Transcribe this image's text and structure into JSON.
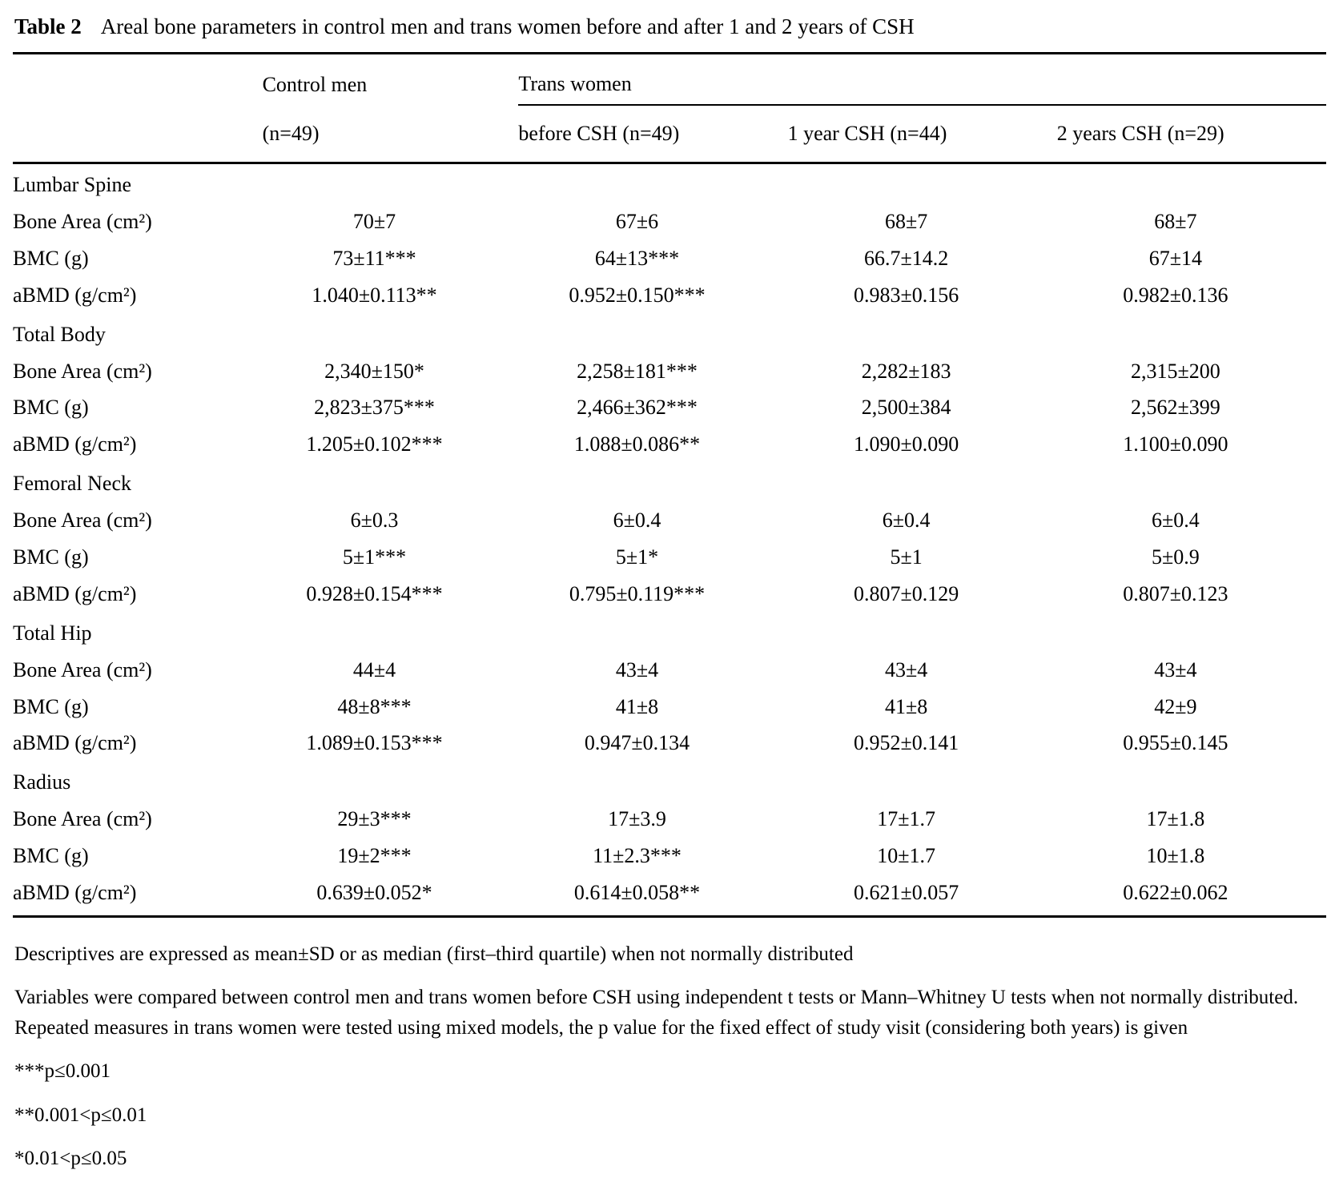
{
  "caption": {
    "label": "Table 2",
    "text": "Areal bone parameters in control men and trans women before and after 1 and 2 years of CSH"
  },
  "colors": {
    "text": "#000000",
    "background": "#ffffff",
    "rule": "#000000"
  },
  "table": {
    "group_headers": {
      "control": "Control men",
      "trans": "Trans women"
    },
    "col_headers": [
      "(n=49)",
      "before CSH (n=49)",
      "1 year CSH (n=44)",
      "2 years CSH (n=29)"
    ],
    "rows": [
      {
        "type": "section",
        "label": "Lumbar Spine"
      },
      {
        "type": "data",
        "label": "Bone Area (cm²)",
        "values": [
          "70±7",
          "67±6",
          "68±7",
          "68±7"
        ]
      },
      {
        "type": "data",
        "label": "BMC (g)",
        "values": [
          "73±11***",
          "64±13***",
          "66.7±14.2",
          "67±14"
        ]
      },
      {
        "type": "data",
        "label": "aBMD (g/cm²)",
        "values": [
          "1.040±0.113**",
          "0.952±0.150***",
          "0.983±0.156",
          "0.982±0.136"
        ]
      },
      {
        "type": "section",
        "label": "Total Body"
      },
      {
        "type": "data",
        "label": "Bone Area (cm²)",
        "values": [
          "2,340±150*",
          "2,258±181***",
          "2,282±183",
          "2,315±200"
        ]
      },
      {
        "type": "data",
        "label": "BMC (g)",
        "values": [
          "2,823±375***",
          "2,466±362***",
          "2,500±384",
          "2,562±399"
        ]
      },
      {
        "type": "data",
        "label": "aBMD (g/cm²)",
        "values": [
          "1.205±0.102***",
          "1.088±0.086**",
          "1.090±0.090",
          "1.100±0.090"
        ]
      },
      {
        "type": "section",
        "label": "Femoral Neck"
      },
      {
        "type": "data",
        "label": "Bone Area (cm²)",
        "values": [
          "6±0.3",
          "6±0.4",
          "6±0.4",
          "6±0.4"
        ]
      },
      {
        "type": "data",
        "label": "BMC (g)",
        "values": [
          "5±1***",
          "5±1*",
          "5±1",
          "5±0.9"
        ]
      },
      {
        "type": "data",
        "label": "aBMD (g/cm²)",
        "values": [
          "0.928±0.154***",
          "0.795±0.119***",
          "0.807±0.129",
          "0.807±0.123"
        ]
      },
      {
        "type": "section",
        "label": "Total Hip"
      },
      {
        "type": "data",
        "label": "Bone Area (cm²)",
        "values": [
          "44±4",
          "43±4",
          "43±4",
          "43±4"
        ]
      },
      {
        "type": "data",
        "label": "BMC (g)",
        "values": [
          "48±8***",
          "41±8",
          "41±8",
          "42±9"
        ]
      },
      {
        "type": "data",
        "label": "aBMD (g/cm²)",
        "values": [
          "1.089±0.153***",
          "0.947±0.134",
          "0.952±0.141",
          "0.955±0.145"
        ]
      },
      {
        "type": "section",
        "label": "Radius"
      },
      {
        "type": "data",
        "label": "Bone Area (cm²)",
        "values": [
          "29±3***",
          "17±3.9",
          "17±1.7",
          "17±1.8"
        ]
      },
      {
        "type": "data",
        "label": "BMC (g)",
        "values": [
          "19±2***",
          "11±2.3***",
          "10±1.7",
          "10±1.8"
        ]
      },
      {
        "type": "data",
        "label": "aBMD (g/cm²)",
        "values": [
          "0.639±0.052*",
          "0.614±0.058**",
          "0.621±0.057",
          "0.622±0.062"
        ]
      }
    ]
  },
  "footnotes": [
    "Descriptives are expressed as mean±SD or as median (first–third quartile) when not normally distributed",
    "Variables were compared between control men and trans women before CSH using independent t tests or Mann–Whitney U tests when not normally distributed. Repeated measures in trans women were tested using mixed models, the p value for the fixed effect of study visit (considering both years) is given",
    "***p≤0.001",
    "**0.001<p≤0.01",
    "*0.01<p≤0.05"
  ]
}
